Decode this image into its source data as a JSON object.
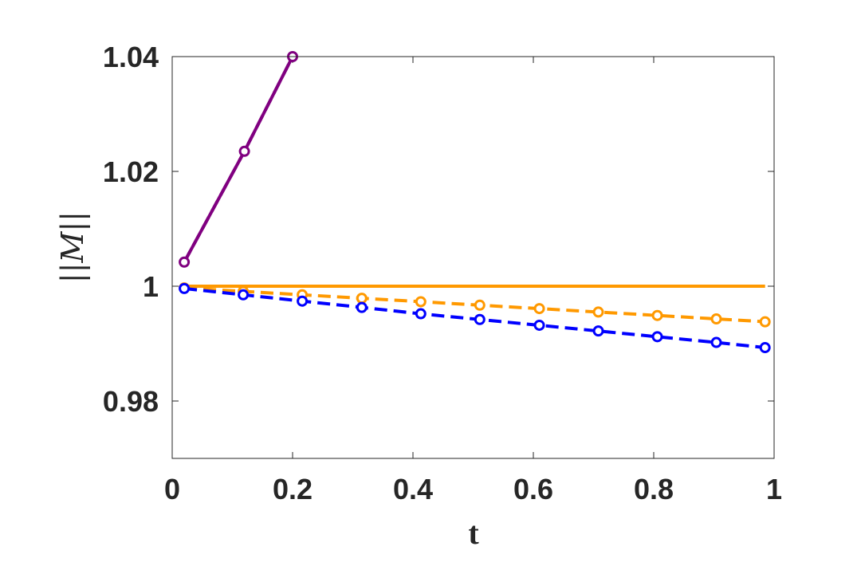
{
  "chart_data": {
    "type": "line",
    "title": "",
    "xlabel": "t",
    "ylabel": "||M||",
    "xlim": [
      0,
      1
    ],
    "ylim": [
      0.97,
      1.04
    ],
    "xticks": [
      0,
      0.2,
      0.4,
      0.6,
      0.8,
      1
    ],
    "xtick_labels": [
      "0",
      "0.2",
      "0.4",
      "0.6",
      "0.8",
      "1"
    ],
    "yticks": [
      0.98,
      1.0,
      1.02,
      1.04
    ],
    "ytick_labels": [
      "0.98",
      "1",
      "1.02",
      "1.04"
    ],
    "grid": false,
    "legend": "none",
    "series": [
      {
        "color": "#800080",
        "line": "solid",
        "markers": false,
        "x": [
          0.02,
          0.12,
          0.2
        ],
        "y": [
          1.0042,
          1.0235,
          1.04
        ]
      },
      {
        "color": "#800080",
        "line": "dashed",
        "markers": true,
        "x": [
          0.02,
          0.12,
          0.2
        ],
        "y": [
          1.0042,
          1.0235,
          1.04
        ]
      },
      {
        "color": "#FF9900",
        "line": "solid",
        "markers": false,
        "x": [
          0.02,
          0.985
        ],
        "y": [
          1.0,
          1.0
        ]
      },
      {
        "color": "#FF9900",
        "line": "dashed",
        "markers": true,
        "x": [
          0.02,
          0.118,
          0.216,
          0.315,
          0.413,
          0.511,
          0.61,
          0.708,
          0.806,
          0.904,
          0.985
        ],
        "y": [
          0.9997,
          0.9991,
          0.9985,
          0.9979,
          0.9973,
          0.9967,
          0.9961,
          0.9955,
          0.9949,
          0.9943,
          0.9938
        ]
      },
      {
        "color": "#0000FF",
        "line": "dashed",
        "markers": true,
        "x": [
          0.02,
          0.118,
          0.216,
          0.315,
          0.413,
          0.511,
          0.61,
          0.708,
          0.806,
          0.904,
          0.985
        ],
        "y": [
          0.9996,
          0.9985,
          0.9974,
          0.9963,
          0.9952,
          0.9942,
          0.9932,
          0.9922,
          0.9912,
          0.9902,
          0.9893
        ]
      }
    ]
  }
}
